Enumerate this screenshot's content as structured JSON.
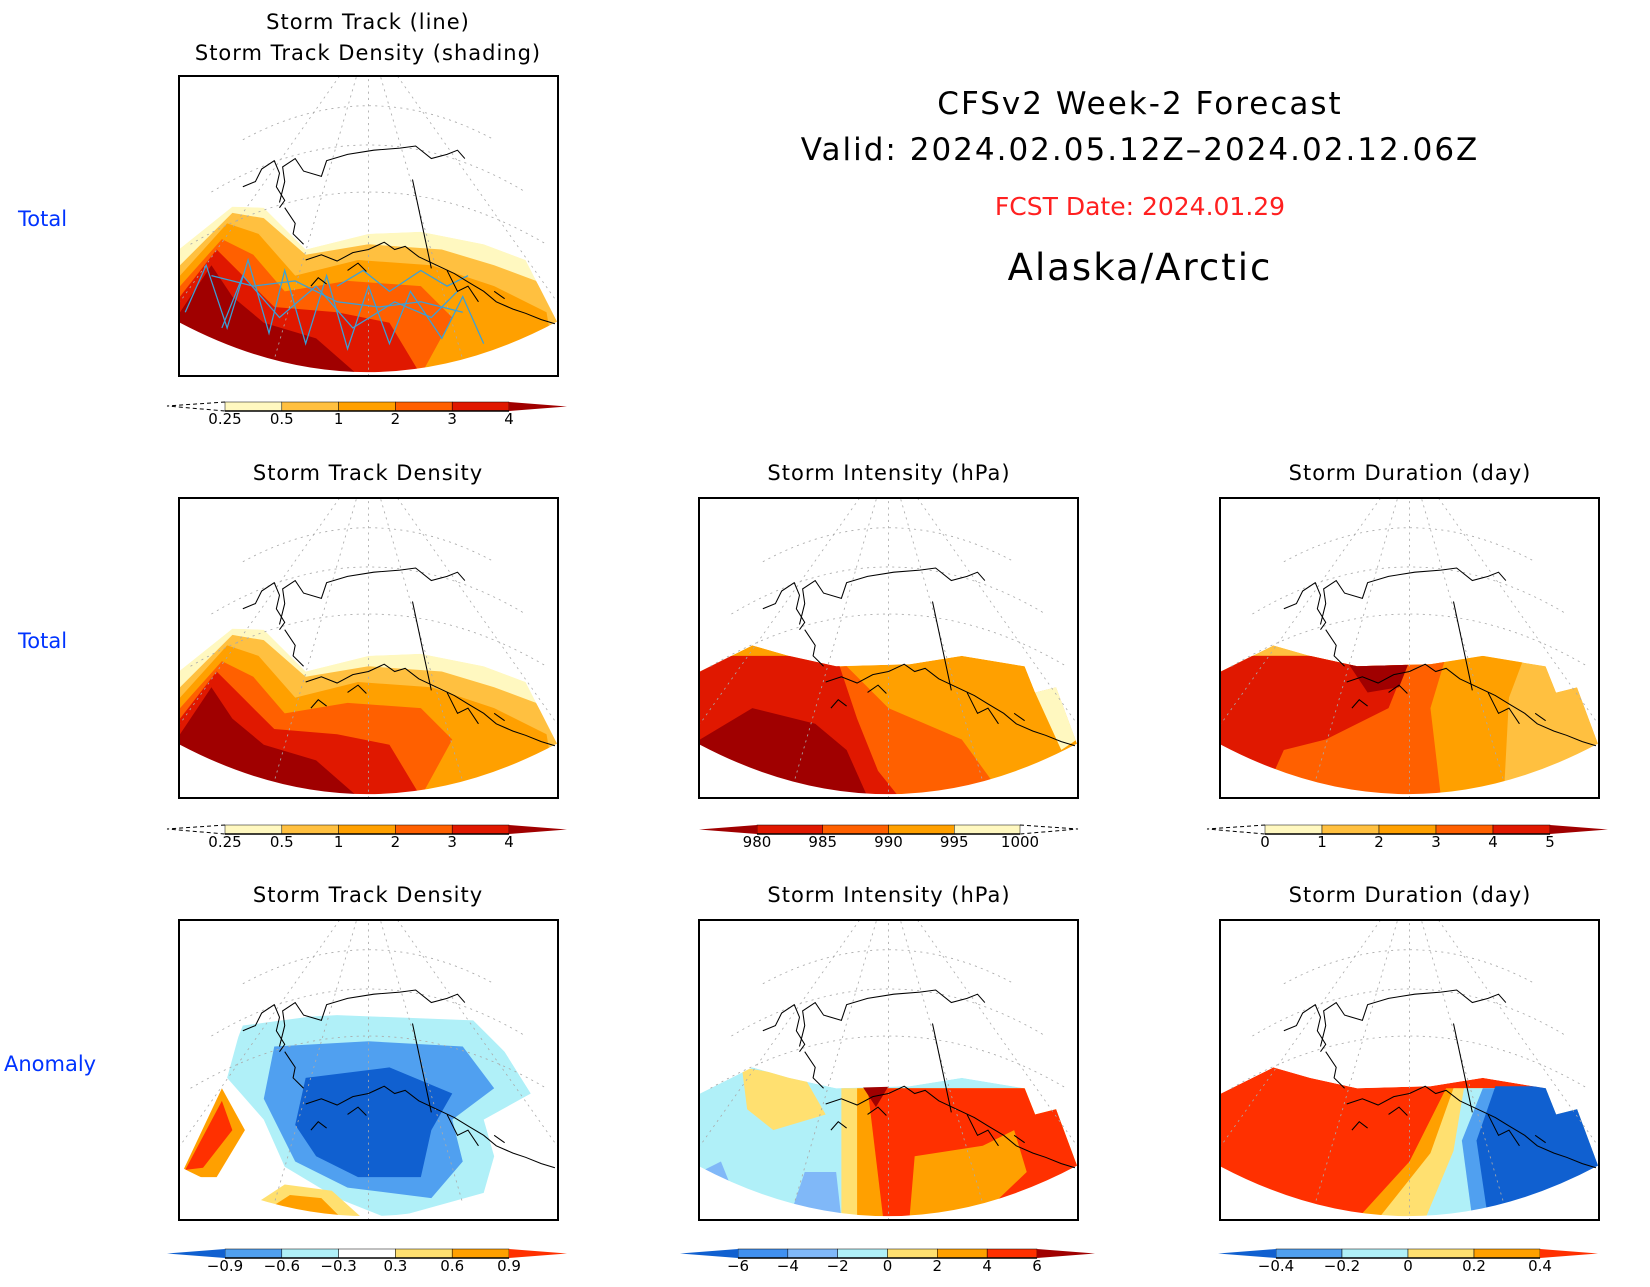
{
  "header": {
    "title": "CFSv2 Week-2 Forecast",
    "valid": "Valid: 2024.02.05.12Z–2024.02.12.06Z",
    "fcst_date": "FCST Date: 2024.01.29",
    "region": "Alaska/Arctic",
    "fcst_color": "#ff2020"
  },
  "row_labels": [
    "Total",
    "Total",
    "Anomaly"
  ],
  "panels": {
    "top": {
      "title_line1": "Storm Track (line)",
      "title_line2": "Storm Track Density (shading)"
    },
    "density_total": {
      "title": "Storm Track Density"
    },
    "intensity_total": {
      "title": "Storm Intensity (hPa)"
    },
    "duration_total": {
      "title": "Storm Duration (day)"
    },
    "density_anom": {
      "title": "Storm Track Density"
    },
    "intensity_anom": {
      "title": "Storm Intensity (hPa)"
    },
    "duration_anom": {
      "title": "Storm Duration (day)"
    }
  },
  "chart_data": [
    {
      "type": "heatmap",
      "name": "storm-track-density-with-tracks",
      "colorbar": {
        "labels": [
          "0.25",
          "0.5",
          "1",
          "2",
          "3",
          "4"
        ],
        "colors": [
          "#fff8c0",
          "#ffc040",
          "#ffa000",
          "#ff6000",
          "#e01800"
        ],
        "left_end": "none",
        "right_end": "#a00000"
      }
    },
    {
      "type": "heatmap",
      "name": "storm-track-density-total",
      "colorbar": {
        "labels": [
          "0.25",
          "0.5",
          "1",
          "2",
          "3",
          "4"
        ],
        "colors": [
          "#fff8c0",
          "#ffc040",
          "#ffa000",
          "#ff6000",
          "#e01800"
        ],
        "left_end": "none",
        "right_end": "#a00000"
      }
    },
    {
      "type": "heatmap",
      "name": "storm-intensity-total",
      "colorbar": {
        "labels": [
          "980",
          "985",
          "990",
          "995",
          "1000"
        ],
        "colors": [
          "#e01800",
          "#ff6000",
          "#ffa000",
          "#fff8c0"
        ],
        "left_end": "#a00000",
        "right_end": "none"
      }
    },
    {
      "type": "heatmap",
      "name": "storm-duration-total",
      "colorbar": {
        "labels": [
          "0",
          "1",
          "2",
          "3",
          "4",
          "5"
        ],
        "colors": [
          "#fff8c0",
          "#ffc040",
          "#ffa000",
          "#ff6000",
          "#e01800"
        ],
        "left_end": "none",
        "right_end": "#a00000"
      }
    },
    {
      "type": "heatmap",
      "name": "storm-track-density-anomaly",
      "colorbar": {
        "labels": [
          "−0.9",
          "−0.6",
          "−0.3",
          "0.3",
          "0.6",
          "0.9"
        ],
        "colors": [
          "#50a0f0",
          "#b0f0f8",
          "#ffffff",
          "#ffe070",
          "#ffa000"
        ],
        "left_end": "#1060d0",
        "right_end": "#ff3000"
      }
    },
    {
      "type": "heatmap",
      "name": "storm-intensity-anomaly",
      "colorbar": {
        "labels": [
          "−6",
          "−4",
          "−2",
          "0",
          "2",
          "4",
          "6"
        ],
        "colors": [
          "#4090f0",
          "#80b8f8",
          "#b0f0f8",
          "#ffe070",
          "#ffa000",
          "#ff3000"
        ],
        "left_end": "#1060d0",
        "right_end": "#a00000"
      }
    },
    {
      "type": "heatmap",
      "name": "storm-duration-anomaly",
      "colorbar": {
        "labels": [
          "−0.4",
          "−0.2",
          "0",
          "0.2",
          "0.4"
        ],
        "colors": [
          "#50a0f0",
          "#b0f0f8",
          "#ffe070",
          "#ffa000"
        ],
        "left_end": "#1060d0",
        "right_end": "#ff3000"
      }
    }
  ]
}
